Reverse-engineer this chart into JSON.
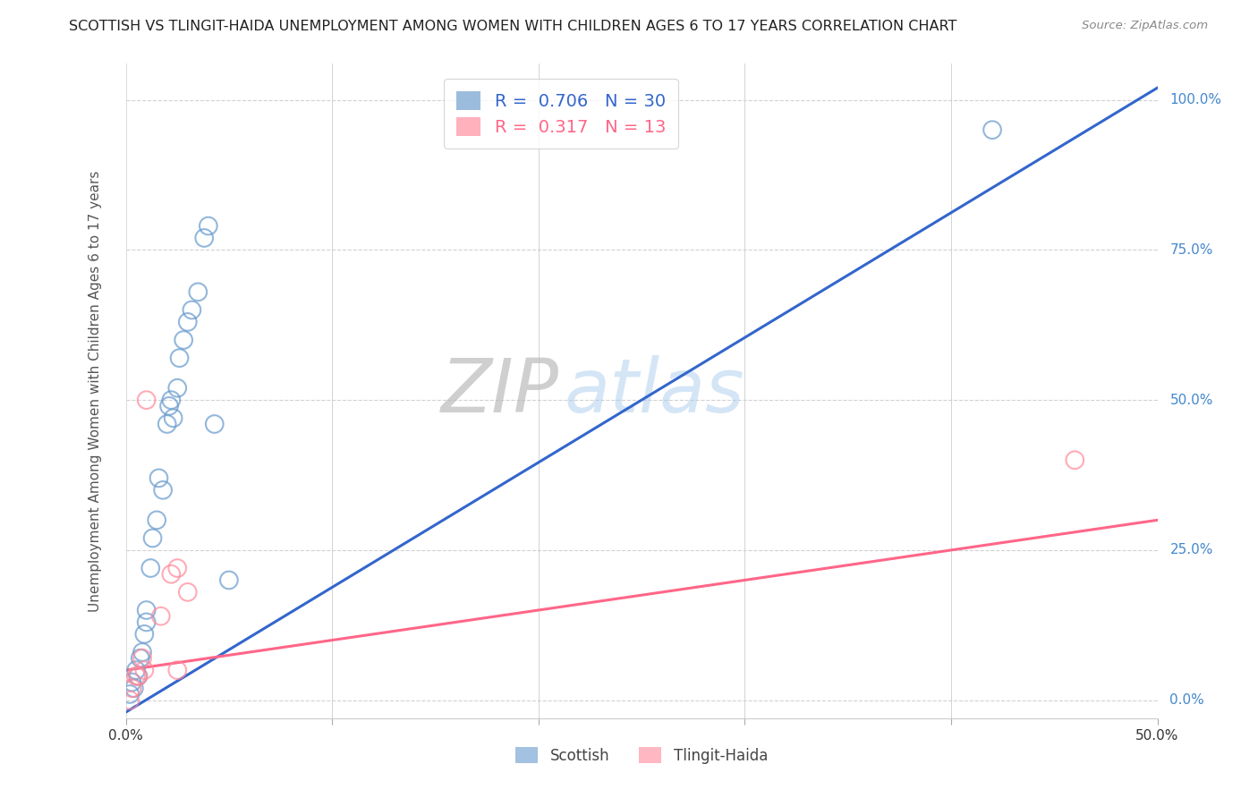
{
  "title": "SCOTTISH VS TLINGIT-HAIDA UNEMPLOYMENT AMONG WOMEN WITH CHILDREN AGES 6 TO 17 YEARS CORRELATION CHART",
  "source": "Source: ZipAtlas.com",
  "ylabel": "Unemployment Among Women with Children Ages 6 to 17 years",
  "xlim": [
    0.0,
    0.5
  ],
  "ylim": [
    -0.03,
    1.06
  ],
  "scottish_R": 0.706,
  "scottish_N": 30,
  "tlingit_R": 0.317,
  "tlingit_N": 13,
  "scottish_color": "#6699CC",
  "tlingit_color": "#FF8899",
  "scottish_line_color": "#3366CC",
  "tlingit_line_color": "#FF6688",
  "background_color": "#FFFFFF",
  "scottish_x": [
    0.002,
    0.003,
    0.004,
    0.005,
    0.006,
    0.007,
    0.008,
    0.009,
    0.01,
    0.01,
    0.012,
    0.013,
    0.015,
    0.016,
    0.018,
    0.02,
    0.021,
    0.022,
    0.023,
    0.025,
    0.026,
    0.028,
    0.03,
    0.032,
    0.035,
    0.038,
    0.04,
    0.043,
    0.05,
    0.42
  ],
  "scottish_y": [
    0.01,
    0.03,
    0.02,
    0.05,
    0.04,
    0.07,
    0.08,
    0.11,
    0.13,
    0.15,
    0.22,
    0.27,
    0.3,
    0.37,
    0.35,
    0.46,
    0.49,
    0.5,
    0.47,
    0.52,
    0.57,
    0.6,
    0.63,
    0.65,
    0.68,
    0.77,
    0.79,
    0.46,
    0.2,
    0.95
  ],
  "tlingit_x": [
    0.002,
    0.003,
    0.005,
    0.006,
    0.008,
    0.009,
    0.01,
    0.017,
    0.022,
    0.025,
    0.025,
    0.03,
    0.46
  ],
  "tlingit_y": [
    0.0,
    0.02,
    0.04,
    0.04,
    0.07,
    0.05,
    0.5,
    0.14,
    0.21,
    0.22,
    0.05,
    0.18,
    0.4
  ],
  "yticks": [
    0.0,
    0.25,
    0.5,
    0.75,
    1.0
  ],
  "ytick_right_labels": [
    "0.0%",
    "25.0%",
    "50.0%",
    "75.0%",
    "100.0%"
  ],
  "xticks": [
    0.0,
    0.1,
    0.2,
    0.3,
    0.4,
    0.5
  ],
  "xtick_labels": [
    "0.0%",
    "",
    "",
    "",
    "",
    "50.0%"
  ]
}
